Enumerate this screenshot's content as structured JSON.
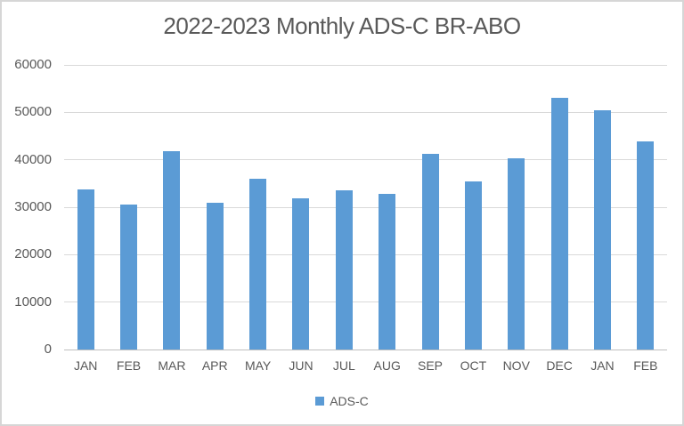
{
  "chart_data": {
    "type": "bar",
    "title": "2022-2023 Monthly ADS-C BR-ABO",
    "categories": [
      "JAN",
      "FEB",
      "MAR",
      "APR",
      "MAY",
      "JUN",
      "JUL",
      "AUG",
      "SEP",
      "OCT",
      "NOV",
      "DEC",
      "JAN",
      "FEB"
    ],
    "series": [
      {
        "name": "ADS-C",
        "color": "#5B9BD5",
        "values": [
          33800,
          30600,
          41900,
          31000,
          36000,
          31800,
          33500,
          32900,
          41200,
          35400,
          40400,
          53000,
          50400,
          43900
        ]
      }
    ],
    "xlabel": "",
    "ylabel": "",
    "ylim": [
      0,
      60000
    ],
    "yticks": [
      0,
      10000,
      20000,
      30000,
      40000,
      50000,
      60000
    ],
    "ytick_labels": [
      "0",
      "10000",
      "20000",
      "30000",
      "40000",
      "50000",
      "60000"
    ],
    "grid": "horizontal",
    "legend_position": "bottom"
  },
  "colors": {
    "bar": "#5B9BD5",
    "gridline": "#D9D9D9",
    "axis_line": "#BFBFBF",
    "text": "#595959",
    "background": "#FFFFFF",
    "border": "#D6D6D6"
  }
}
